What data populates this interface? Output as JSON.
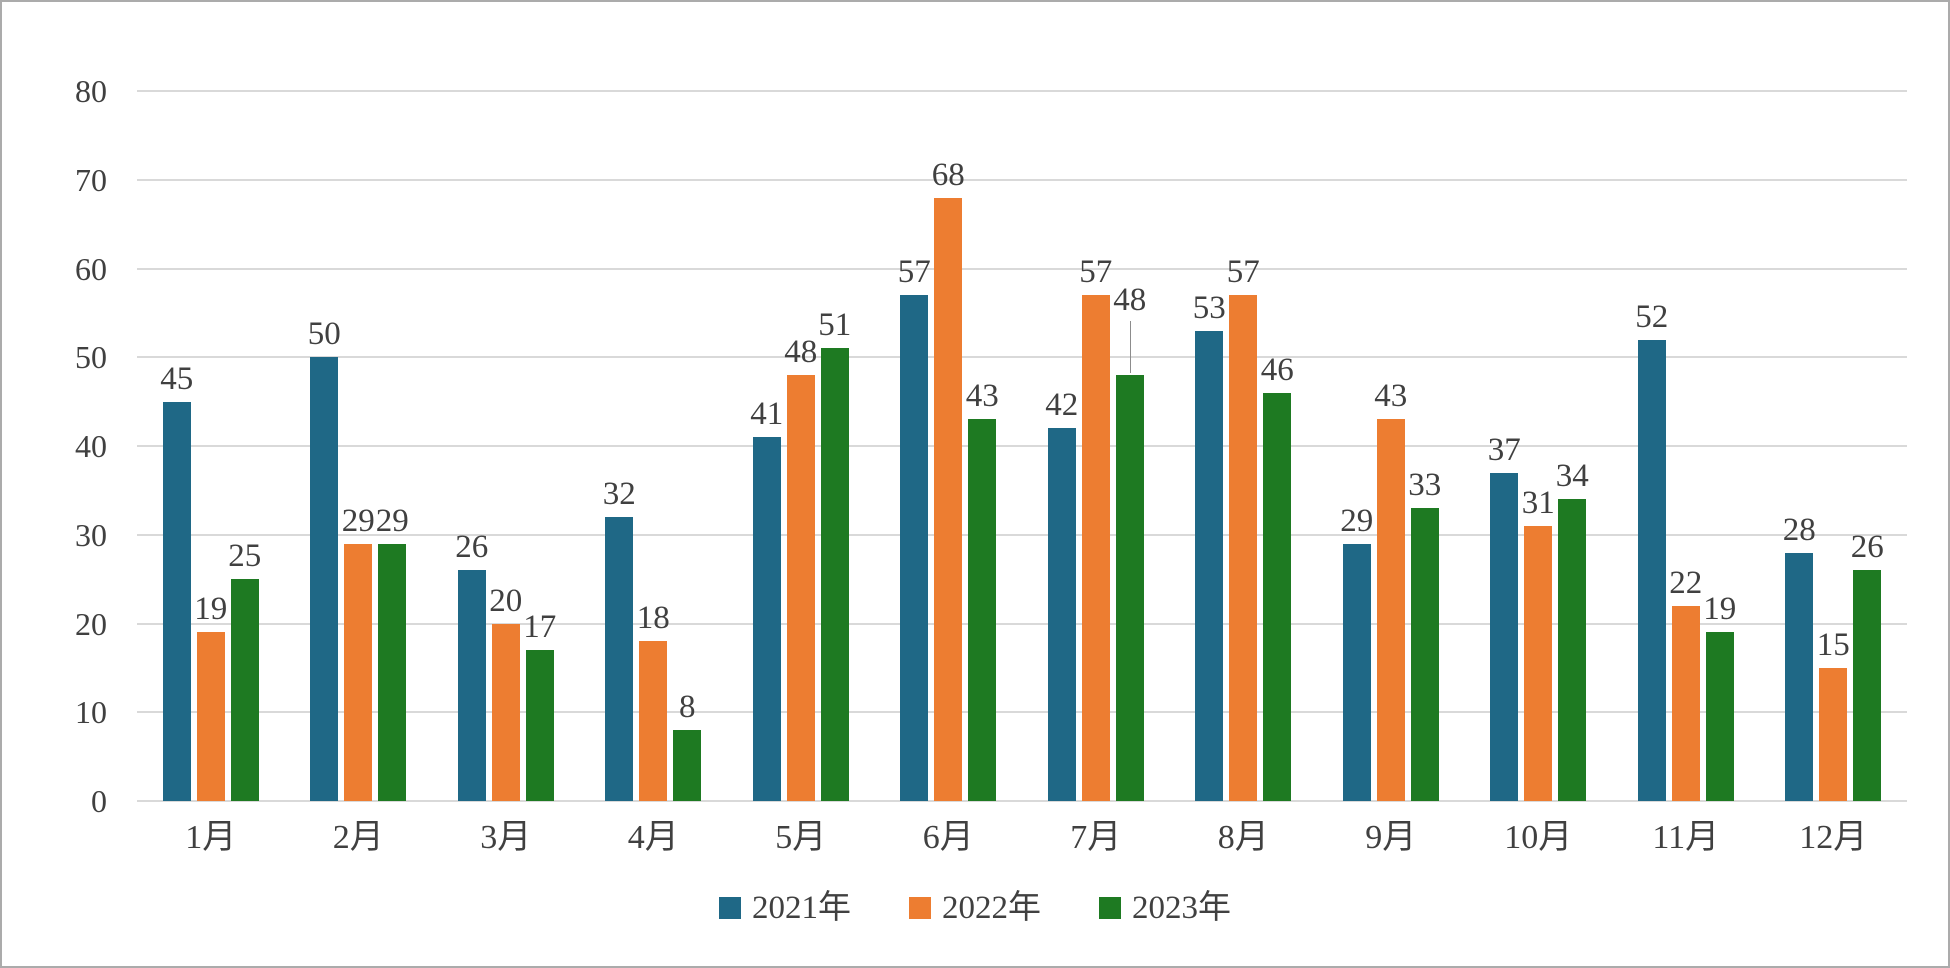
{
  "chart_data": {
    "type": "bar",
    "title": "",
    "categories": [
      "1月",
      "2月",
      "3月",
      "4月",
      "5月",
      "6月",
      "7月",
      "8月",
      "9月",
      "10月",
      "11月",
      "12月"
    ],
    "series": [
      {
        "name": "2021年",
        "color": "#1f6886",
        "values": [
          45,
          50,
          26,
          32,
          41,
          57,
          42,
          53,
          29,
          37,
          52,
          28
        ]
      },
      {
        "name": "2022年",
        "color": "#ed7d31",
        "values": [
          19,
          29,
          20,
          18,
          48,
          68,
          57,
          57,
          43,
          31,
          22,
          15
        ]
      },
      {
        "name": "2023年",
        "color": "#1e7a22",
        "values": [
          25,
          29,
          17,
          8,
          51,
          43,
          48,
          46,
          33,
          34,
          19,
          26
        ]
      }
    ],
    "ylim": [
      0,
      80
    ],
    "yticks": [
      0,
      10,
      20,
      30,
      40,
      50,
      60,
      70,
      80
    ],
    "xlabel": "",
    "ylabel": "",
    "grid": true,
    "data_labels": true,
    "legend_position": "bottom",
    "annotations": [
      {
        "type": "leader-line",
        "category": "7月",
        "series": "2023年",
        "note": "data label raised above bar with thin gray leader line"
      }
    ]
  },
  "style_colors": {
    "gridline": "#d9d9d9",
    "text": "#404040",
    "frame_border": "#ababab",
    "leader_line": "#8c8c8c",
    "background": "#ffffff"
  }
}
